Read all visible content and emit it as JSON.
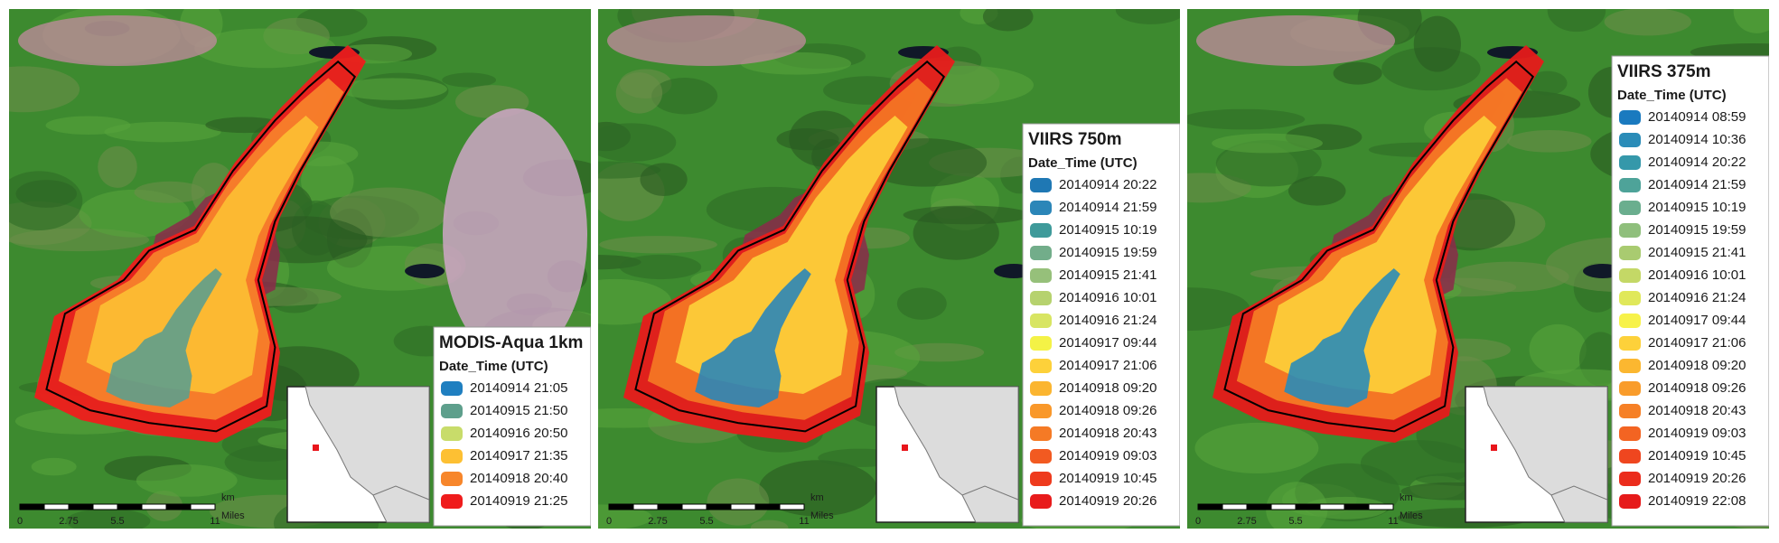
{
  "panels": [
    {
      "legend": {
        "title": "MODIS-Aqua 1km",
        "subtitle": "Date_Time (UTC)",
        "items": [
          {
            "label": "20140914 21:05",
            "color": "#1f7fc0"
          },
          {
            "label": "20140915 21:50",
            "color": "#5e9f8c"
          },
          {
            "label": "20140916 20:50",
            "color": "#c8dc6a"
          },
          {
            "label": "20140917 21:35",
            "color": "#fdc033"
          },
          {
            "label": "20140918 20:40",
            "color": "#f7862b"
          },
          {
            "label": "20140919 21:25",
            "color": "#ef1c1c"
          }
        ]
      },
      "scale_bar": {
        "unit_top": "km",
        "unit_bottom": "Miles",
        "ticks": [
          "0",
          "2.75",
          "5.5",
          "11"
        ]
      }
    },
    {
      "legend": {
        "title": "VIIRS 750m",
        "subtitle": "Date_Time (UTC)",
        "items": [
          {
            "label": "20140914 20:22",
            "color": "#1f78b4"
          },
          {
            "label": "20140914 21:59",
            "color": "#2b86b8"
          },
          {
            "label": "20140915 10:19",
            "color": "#3e9a9a"
          },
          {
            "label": "20140915 19:59",
            "color": "#72ad8a"
          },
          {
            "label": "20140915 21:41",
            "color": "#96c07a"
          },
          {
            "label": "20140916 10:01",
            "color": "#b6d26e"
          },
          {
            "label": "20140916 21:24",
            "color": "#d8e562"
          },
          {
            "label": "20140917 09:44",
            "color": "#f4f246"
          },
          {
            "label": "20140917 21:06",
            "color": "#fdd13a"
          },
          {
            "label": "20140918 09:20",
            "color": "#fbb530"
          },
          {
            "label": "20140918 09:26",
            "color": "#f9982a"
          },
          {
            "label": "20140918 20:43",
            "color": "#f57a25"
          },
          {
            "label": "20140919 09:03",
            "color": "#f25a21"
          },
          {
            "label": "20140919 10:45",
            "color": "#ee3a1d"
          },
          {
            "label": "20140919 20:26",
            "color": "#e81b1b"
          }
        ]
      },
      "scale_bar": {
        "unit_top": "km",
        "unit_bottom": "Miles",
        "ticks": [
          "0",
          "2.75",
          "5.5",
          "11"
        ]
      }
    },
    {
      "legend": {
        "title": "VIIRS 375m",
        "subtitle": "Date_Time (UTC)",
        "items": [
          {
            "label": "20140914 08:59",
            "color": "#1a7abf"
          },
          {
            "label": "20140914 10:36",
            "color": "#2a8cb8"
          },
          {
            "label": "20140914 20:22",
            "color": "#3598aa"
          },
          {
            "label": "20140914 21:59",
            "color": "#4ea399"
          },
          {
            "label": "20140915 10:19",
            "color": "#6aae8e"
          },
          {
            "label": "20140915 19:59",
            "color": "#8fbf7c"
          },
          {
            "label": "20140915 21:41",
            "color": "#a9cb70"
          },
          {
            "label": "20140916 10:01",
            "color": "#c4d866"
          },
          {
            "label": "20140916 21:24",
            "color": "#e0e85a"
          },
          {
            "label": "20140917 09:44",
            "color": "#f7f24a"
          },
          {
            "label": "20140917 21:06",
            "color": "#fdd13a"
          },
          {
            "label": "20140918 09:20",
            "color": "#fbb730"
          },
          {
            "label": "20140918 09:26",
            "color": "#f99c2b"
          },
          {
            "label": "20140918 20:43",
            "color": "#f68026"
          },
          {
            "label": "20140919 09:03",
            "color": "#f36422"
          },
          {
            "label": "20140919 10:45",
            "color": "#ef461f"
          },
          {
            "label": "20140919 20:26",
            "color": "#eb2c1c"
          },
          {
            "label": "20140919 22:08",
            "color": "#e61a1a"
          }
        ]
      },
      "scale_bar": {
        "unit_top": "km",
        "unit_bottom": "Miles",
        "ticks": [
          "0",
          "2.75",
          "5.5",
          "11"
        ]
      }
    }
  ]
}
